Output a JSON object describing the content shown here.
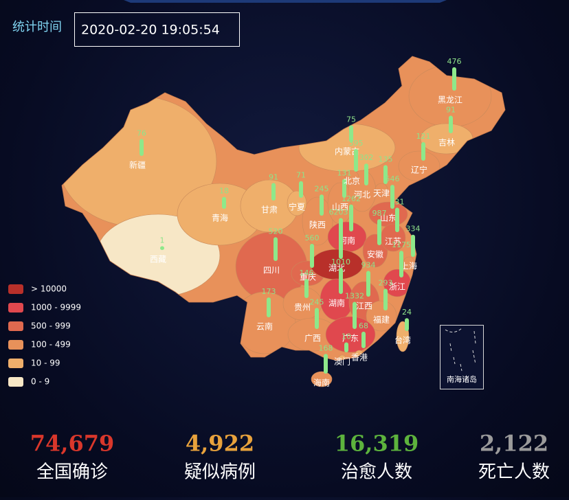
{
  "header": {
    "label": "统计时间",
    "time": "2020-02-20 19:05:54"
  },
  "map": {
    "type": "map",
    "bar_scale": "log",
    "inset_label": "南海诸岛",
    "legend": {
      "pieces": [
        {
          "label": "> 10000",
          "min": 10000,
          "color": "#b8302a"
        },
        {
          "label": "1000 - 9999",
          "min": 1000,
          "max": 9999,
          "color": "#e0484e"
        },
        {
          "label": "500 - 999",
          "min": 500,
          "max": 999,
          "color": "#e0694f"
        },
        {
          "label": "100 - 499",
          "min": 100,
          "max": 499,
          "color": "#e8915a"
        },
        {
          "label": "10 - 99",
          "min": 10,
          "max": 99,
          "color": "#efaf6b"
        },
        {
          "label": "0 - 9",
          "min": 0,
          "max": 9,
          "color": "#f7e7c6"
        }
      ]
    },
    "provinces": [
      {
        "name": "新疆",
        "value": 76
      },
      {
        "name": "西藏",
        "value": 1
      },
      {
        "name": "青海",
        "value": 18
      },
      {
        "name": "内蒙古",
        "value": 75
      },
      {
        "name": "四川",
        "value": 520
      },
      {
        "name": "甘肃",
        "value": 91
      },
      {
        "name": "黑龙江",
        "value": 476
      },
      {
        "name": "云南",
        "value": 173
      },
      {
        "name": "吉林",
        "value": 91
      },
      {
        "name": "辽宁",
        "value": 121
      },
      {
        "name": "陕西",
        "value": 245
      },
      {
        "name": "山西",
        "value": 131
      },
      {
        "name": "河北",
        "value": 302
      },
      {
        "name": "宁夏",
        "value": 71
      },
      {
        "name": "北京",
        "value": 395
      },
      {
        "name": "天津",
        "value": 135
      },
      {
        "name": "山东",
        "value": 546
      },
      {
        "name": "河南",
        "value": 1262
      },
      {
        "name": "重庆",
        "value": 560
      },
      {
        "name": "湖北",
        "value": 62031
      },
      {
        "name": "安徽",
        "value": 987
      },
      {
        "name": "江苏",
        "value": 631
      },
      {
        "name": "上海",
        "value": 334
      },
      {
        "name": "浙江",
        "value": 1175
      },
      {
        "name": "贵州",
        "value": 146
      },
      {
        "name": "湖南",
        "value": 1010
      },
      {
        "name": "江西",
        "value": 934
      },
      {
        "name": "福建",
        "value": 293
      },
      {
        "name": "广西",
        "value": 245
      },
      {
        "name": "广东",
        "value": 1332
      },
      {
        "name": "台湾",
        "value": 24
      },
      {
        "name": "香港",
        "value": 68
      },
      {
        "name": "澳门",
        "value": 10
      },
      {
        "name": "海南",
        "value": 168
      }
    ]
  },
  "stats": [
    {
      "value": "74,679",
      "label": "全国确诊",
      "color": "#d9372b"
    },
    {
      "value": "4,922",
      "label": "疑似病例",
      "color": "#e8a23c"
    },
    {
      "value": "16,319",
      "label": "治愈人数",
      "color": "#5db33d"
    },
    {
      "value": "2,122",
      "label": "死亡人数",
      "color": "#9b9b9b"
    }
  ]
}
